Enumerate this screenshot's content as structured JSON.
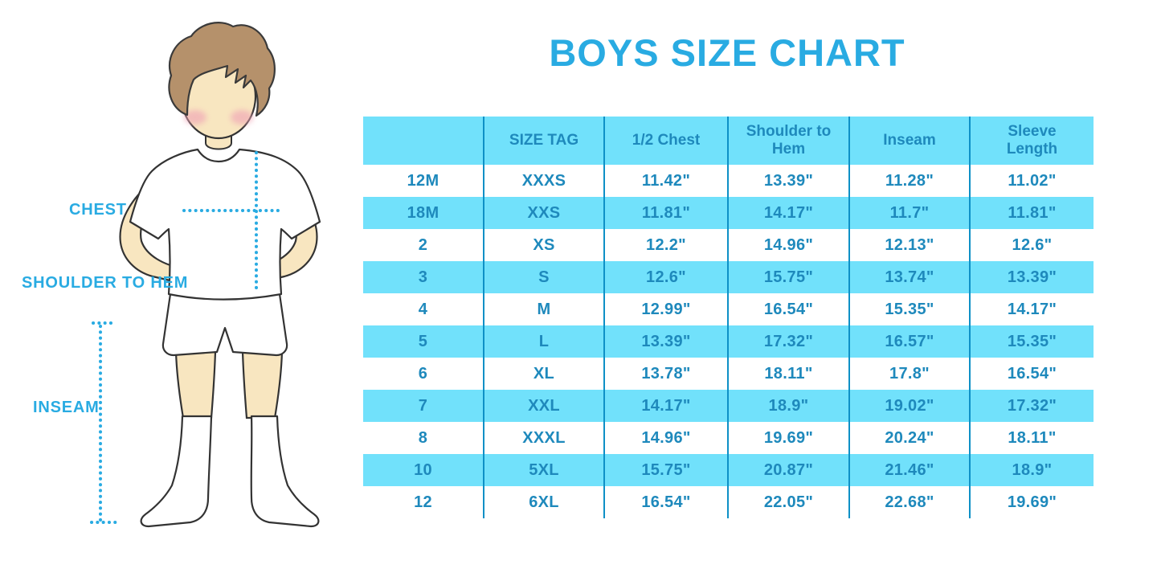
{
  "page": {
    "title": "BOYS SIZE CHART"
  },
  "figure": {
    "accent_color": "#29ABE2",
    "labels": {
      "chest": "CHEST",
      "shoulder_to_hem": "SHOULDER TO HEM",
      "inseam": "INSEAM"
    }
  },
  "chart_data": {
    "type": "table",
    "title": "BOYS SIZE CHART",
    "units": "inches",
    "columns": [
      "",
      "SIZE TAG",
      "1/2 Chest",
      "Shoulder to Hem",
      "Inseam",
      "Sleeve Length"
    ],
    "rows": [
      [
        "12M",
        "XXXS",
        "11.42\"",
        "13.39\"",
        "11.28\"",
        "11.02\""
      ],
      [
        "18M",
        "XXS",
        "11.81\"",
        "14.17\"",
        "11.7\"",
        "11.81\""
      ],
      [
        "2",
        "XS",
        "12.2\"",
        "14.96\"",
        "12.13\"",
        "12.6\""
      ],
      [
        "3",
        "S",
        "12.6\"",
        "15.75\"",
        "13.74\"",
        "13.39\""
      ],
      [
        "4",
        "M",
        "12.99\"",
        "16.54\"",
        "15.35\"",
        "14.17\""
      ],
      [
        "5",
        "L",
        "13.39\"",
        "17.32\"",
        "16.57\"",
        "15.35\""
      ],
      [
        "6",
        "XL",
        "13.78\"",
        "18.11\"",
        "17.8\"",
        "16.54\""
      ],
      [
        "7",
        "XXL",
        "14.17\"",
        "18.9\"",
        "19.02\"",
        "17.32\""
      ],
      [
        "8",
        "XXXL",
        "14.96\"",
        "19.69\"",
        "20.24\"",
        "18.11\""
      ],
      [
        "10",
        "5XL",
        "15.75\"",
        "20.87\"",
        "21.46\"",
        "18.9\""
      ],
      [
        "12",
        "6XL",
        "16.54\"",
        "22.05\"",
        "22.68\"",
        "19.69\""
      ]
    ],
    "style": {
      "band_color": "#71E1FB",
      "text_color": "#1E89BC",
      "divider_color": "#0E90C6",
      "banding": "header and alternating rows cyan, first data row white"
    }
  }
}
